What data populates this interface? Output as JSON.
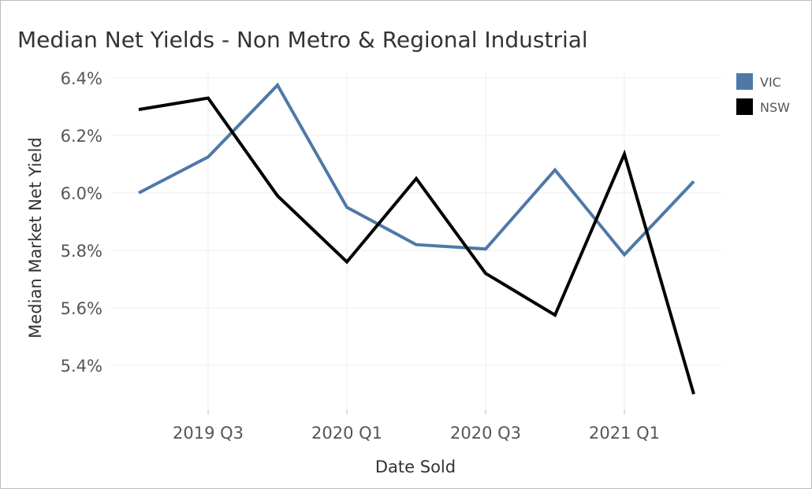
{
  "chart_data": {
    "type": "line",
    "title": "Median Net Yields - Non Metro & Regional Industrial",
    "xlabel": "Date Sold",
    "ylabel": "Median Market Net Yield",
    "x": [
      "2019 Q2",
      "2019 Q3",
      "2019 Q4",
      "2020 Q1",
      "2020 Q2",
      "2020 Q3",
      "2020 Q4",
      "2021 Q1",
      "2021 Q2"
    ],
    "x_tick_labels": [
      "2019 Q3",
      "2020 Q1",
      "2020 Q3",
      "2021 Q1"
    ],
    "y_ticks": [
      5.4,
      5.6,
      5.8,
      6.0,
      6.2,
      6.4
    ],
    "y_tick_labels": [
      "5.4%",
      "5.6%",
      "5.8%",
      "6.0%",
      "6.2%",
      "6.4%"
    ],
    "ylim": [
      5.3,
      6.42
    ],
    "grid": true,
    "legend_position": "top-right",
    "series": [
      {
        "name": "VIC",
        "color": "#4e79a7",
        "values": [
          6.0,
          6.125,
          6.375,
          5.95,
          5.82,
          5.805,
          6.08,
          5.785,
          6.04
        ]
      },
      {
        "name": "NSW",
        "color": "#000000",
        "values": [
          6.29,
          6.33,
          5.99,
          5.76,
          6.05,
          5.72,
          5.575,
          6.135,
          5.3
        ]
      }
    ]
  }
}
